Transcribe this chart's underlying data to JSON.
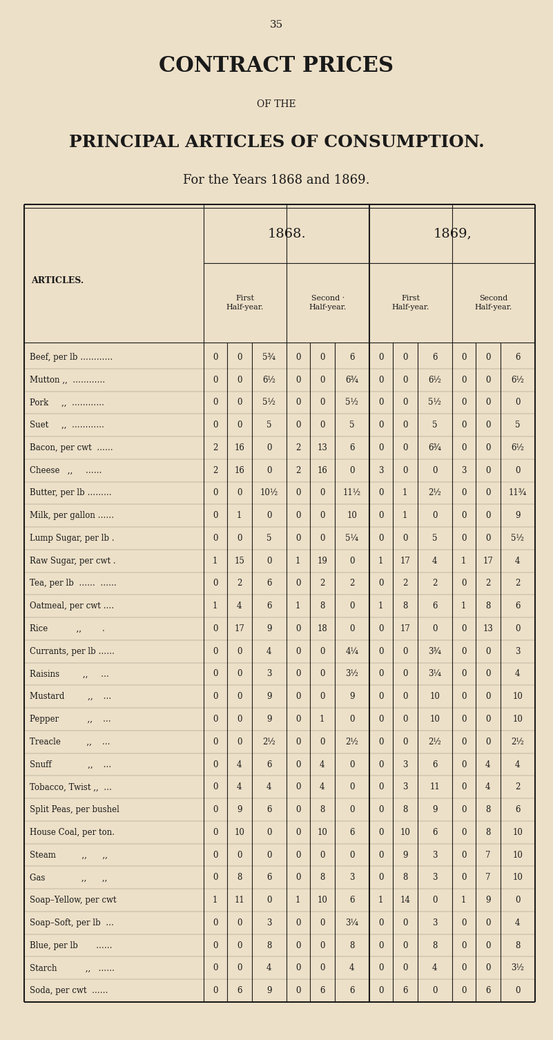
{
  "page_number": "35",
  "title_line1": "CONTRACT PRICES",
  "title_line2": "OF THE",
  "title_line3": "PRINCIPAL ARTICLES OF CONSUMPTION.",
  "title_line4": "For the Years 1868 and 1869.",
  "year1": "1868.",
  "year2": "1869,",
  "col_headers": [
    "First\nHalf-year.",
    "Second ·\nHalf-year.",
    "First\nHalf-year.",
    "Second\nHalf-year."
  ],
  "articles_col": "ARTICLES.",
  "bg_color": "#EDE0C8",
  "text_color": "#1a1a1a",
  "rows": [
    [
      "Beef, per lb …………",
      "0",
      "0",
      "5¾",
      "0",
      "0",
      "6",
      "0",
      "0",
      "6",
      "0",
      "0",
      "6"
    ],
    [
      "Mutton ,,  …………",
      "0",
      "0",
      "6½",
      "0",
      "0",
      "6¾",
      "0",
      "0",
      "6½",
      "0",
      "0",
      "6½"
    ],
    [
      "Pork     ,,  …………",
      "0",
      "0",
      "5½",
      "0",
      "0",
      "5½",
      "0",
      "0",
      "5½",
      "0",
      "0",
      "0"
    ],
    [
      "Suet     ,,  …………",
      "0",
      "0",
      "5",
      "0",
      "0",
      "5",
      "0",
      "0",
      "5",
      "0",
      "0",
      "5"
    ],
    [
      "Bacon, per cwt  ……",
      "2",
      "16",
      "0",
      "2",
      "13",
      "6",
      "0",
      "0",
      "6¾",
      "0",
      "0",
      "6½"
    ],
    [
      "Cheese   ,,     ……",
      "2",
      "16",
      "0",
      "2",
      "16",
      "0",
      "3",
      "0",
      "0",
      "3",
      "0",
      "0"
    ],
    [
      "Butter, per lb ………",
      "0",
      "0",
      "10½",
      "0",
      "0",
      "11½",
      "0",
      "1",
      "2½",
      "0",
      "0",
      "11¾"
    ],
    [
      "Milk, per gallon ……",
      "0",
      "1",
      "0",
      "0",
      "0",
      "10",
      "0",
      "1",
      "0",
      "0",
      "0",
      "9"
    ],
    [
      "Lump Sugar, per lb .",
      "0",
      "0",
      "5",
      "0",
      "0",
      "5¼",
      "0",
      "0",
      "5",
      "0",
      "0",
      "5½"
    ],
    [
      "Raw Sugar, per cwt .",
      "1",
      "15",
      "0",
      "1",
      "19",
      "0",
      "1",
      "17",
      "4",
      "1",
      "17",
      "4"
    ],
    [
      "Tea, per lb  ……  ……",
      "0",
      "2",
      "6",
      "0",
      "2",
      "2",
      "0",
      "2",
      "2",
      "0",
      "2",
      "2"
    ],
    [
      "Oatmeal, per cwt ….",
      "1",
      "4",
      "6",
      "1",
      "8",
      "0",
      "1",
      "8",
      "6",
      "1",
      "8",
      "6"
    ],
    [
      "Rice           ,,        .",
      "0",
      "17",
      "9",
      "0",
      "18",
      "0",
      "0",
      "17",
      "0",
      "0",
      "13",
      "0"
    ],
    [
      "Currants, per lb ……",
      "0",
      "0",
      "4",
      "0",
      "0",
      "4¼",
      "0",
      "0",
      "3¾",
      "0",
      "0",
      "3"
    ],
    [
      "Raisins         ,,     …",
      "0",
      "0",
      "3",
      "0",
      "0",
      "3½",
      "0",
      "0",
      "3¼",
      "0",
      "0",
      "4"
    ],
    [
      "Mustard         ,,    …",
      "0",
      "0",
      "9",
      "0",
      "0",
      "9",
      "0",
      "0",
      "10",
      "0",
      "0",
      "10"
    ],
    [
      "Pepper           ,,    …",
      "0",
      "0",
      "9",
      "0",
      "1",
      "0",
      "0",
      "0",
      "10",
      "0",
      "0",
      "10"
    ],
    [
      "Treacle          ,,    …",
      "0",
      "0",
      "2½",
      "0",
      "0",
      "2½",
      "0",
      "0",
      "2½",
      "0",
      "0",
      "2½"
    ],
    [
      "Snuff              ,,    …",
      "0",
      "4",
      "6",
      "0",
      "4",
      "0",
      "0",
      "3",
      "6",
      "0",
      "4",
      "4"
    ],
    [
      "Tobacco, Twist ,,  …",
      "0",
      "4",
      "4",
      "0",
      "4",
      "0",
      "0",
      "3",
      "11",
      "0",
      "4",
      "2"
    ],
    [
      "Split Peas, per bushel",
      "0",
      "9",
      "6",
      "0",
      "8",
      "0",
      "0",
      "8",
      "9",
      "0",
      "8",
      "6"
    ],
    [
      "House Coal, per ton.",
      "0",
      "10",
      "0",
      "0",
      "10",
      "6",
      "0",
      "10",
      "6",
      "0",
      "8",
      "10"
    ],
    [
      "Steam          ,,      ,,",
      "0",
      "0",
      "0",
      "0",
      "0",
      "0",
      "0",
      "9",
      "3",
      "0",
      "7",
      "10"
    ],
    [
      "Gas              ,,      ,,",
      "0",
      "8",
      "6",
      "0",
      "8",
      "3",
      "0",
      "8",
      "3",
      "0",
      "7",
      "10"
    ],
    [
      "Soap–Yellow, per cwt",
      "1",
      "11",
      "0",
      "1",
      "10",
      "6",
      "1",
      "14",
      "0",
      "1",
      "9",
      "0"
    ],
    [
      "Soap–Soft, per lb  …",
      "0",
      "0",
      "3",
      "0",
      "0",
      "3¼",
      "0",
      "0",
      "3",
      "0",
      "0",
      "4"
    ],
    [
      "Blue, per lb       ……",
      "0",
      "0",
      "8",
      "0",
      "0",
      "8",
      "0",
      "0",
      "8",
      "0",
      "0",
      "8"
    ],
    [
      "Starch           ,,   ……",
      "0",
      "0",
      "4",
      "0",
      "0",
      "4",
      "0",
      "0",
      "4",
      "0",
      "0",
      "3½"
    ],
    [
      "Soda, per cwt  ……",
      "0",
      "6",
      "9",
      "0",
      "6",
      "6",
      "0",
      "6",
      "0",
      "0",
      "6",
      "0"
    ]
  ]
}
